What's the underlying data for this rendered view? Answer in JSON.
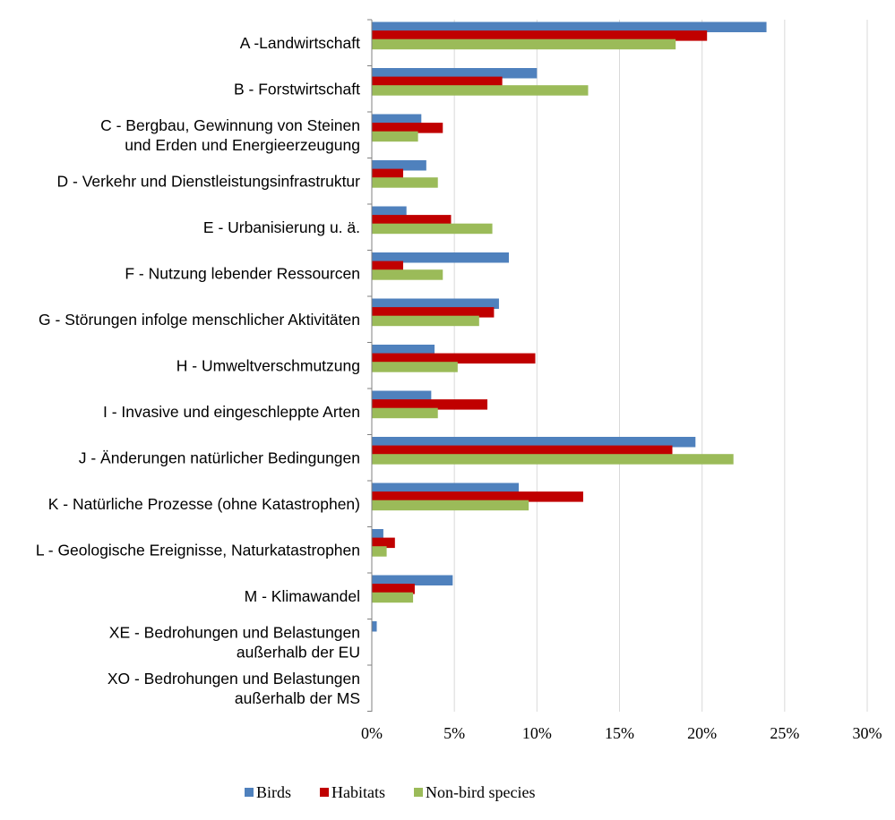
{
  "chart_data": {
    "type": "bar",
    "orientation": "horizontal",
    "title": "",
    "xlabel": "",
    "ylabel": "",
    "xlim": [
      0,
      0.3
    ],
    "x_ticks": [
      {
        "value": 0,
        "label": "0%"
      },
      {
        "value": 0.05,
        "label": "5%"
      },
      {
        "value": 0.1,
        "label": "10%"
      },
      {
        "value": 0.15,
        "label": "15%"
      },
      {
        "value": 0.2,
        "label": "20%"
      },
      {
        "value": 0.25,
        "label": "25%"
      },
      {
        "value": 0.3,
        "label": "30%"
      }
    ],
    "grid": "vertical",
    "legend_position": "bottom",
    "categories": [
      [
        "A -Landwirtschaft"
      ],
      [
        "B - Forstwirtschaft"
      ],
      [
        "C - Bergbau, Gewinnung von Steinen",
        "und Erden und Energieerzeugung"
      ],
      [
        "D - Verkehr und Dienstleistungsinfrastruktur"
      ],
      [
        "E - Urbanisierung u. ä."
      ],
      [
        "F - Nutzung lebender Ressourcen"
      ],
      [
        "G - Störungen infolge menschlicher Aktivitäten"
      ],
      [
        "H - Umweltverschmutzung"
      ],
      [
        "I - Invasive und eingeschleppte Arten"
      ],
      [
        "J - Änderungen natürlicher Bedingungen"
      ],
      [
        "K - Natürliche Prozesse (ohne Katastrophen)"
      ],
      [
        "L - Geologische Ereignisse, Naturkatastrophen"
      ],
      [
        "M - Klimawandel"
      ],
      [
        "XE - Bedrohungen und Belastungen",
        "außerhalb der EU"
      ],
      [
        "XO - Bedrohungen und Belastungen",
        "außerhalb der MS"
      ]
    ],
    "series": [
      {
        "name": "Birds",
        "color": "#4F81BD",
        "values": [
          0.239,
          0.1,
          0.03,
          0.033,
          0.021,
          0.083,
          0.077,
          0.038,
          0.036,
          0.196,
          0.089,
          0.007,
          0.049,
          0.003,
          0.0
        ]
      },
      {
        "name": "Habitats",
        "color": "#C00000",
        "values": [
          0.203,
          0.079,
          0.043,
          0.019,
          0.048,
          0.019,
          0.074,
          0.099,
          0.07,
          0.182,
          0.128,
          0.014,
          0.026,
          0.0,
          0.0
        ]
      },
      {
        "name": "Non-bird species",
        "color": "#9BBB59",
        "values": [
          0.184,
          0.131,
          0.028,
          0.04,
          0.073,
          0.043,
          0.065,
          0.052,
          0.04,
          0.219,
          0.095,
          0.009,
          0.025,
          0.0,
          0.0
        ]
      }
    ]
  }
}
